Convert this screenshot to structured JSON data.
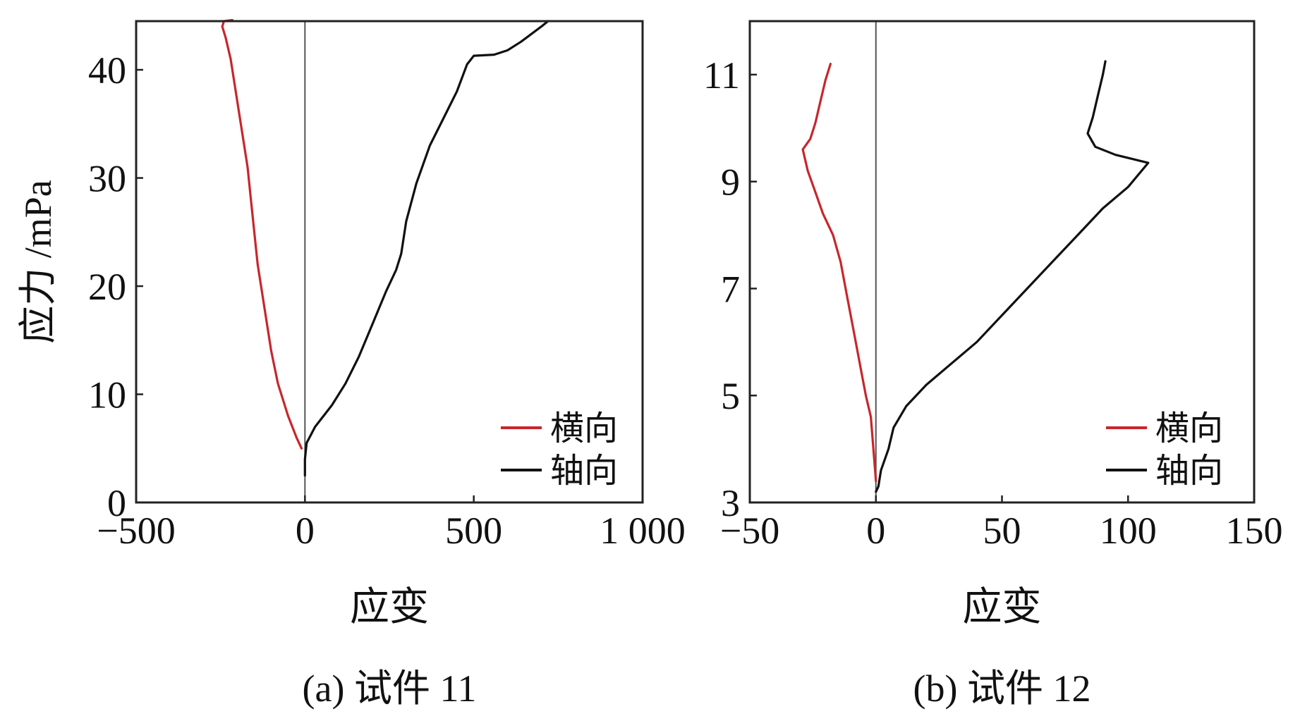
{
  "colors": {
    "transverse": "#c8262b",
    "axial": "#111111",
    "frame": "#222222",
    "zero_line": "#555555"
  },
  "chart_data": [
    {
      "type": "line",
      "caption": "(a) 试件 11",
      "xlabel": "应变",
      "ylabel": "应力 /mPa",
      "xlim": [
        -500,
        1000
      ],
      "ylim": [
        0,
        44.5
      ],
      "x_ticks": [
        -500,
        0,
        500,
        1000
      ],
      "x_tick_labels": [
        "−500",
        "0",
        "500",
        "1 000"
      ],
      "y_ticks": [
        0,
        10,
        20,
        30,
        40
      ],
      "y_tick_labels": [
        "0",
        "10",
        "20",
        "30",
        "40"
      ],
      "vline_x": 0,
      "grid": false,
      "legend_position": "bottom-right",
      "series": [
        {
          "name": "横向",
          "color_key": "transverse",
          "points": [
            [
              -10,
              5
            ],
            [
              -25,
              6
            ],
            [
              -50,
              8
            ],
            [
              -80,
              11
            ],
            [
              -100,
              14
            ],
            [
              -115,
              17
            ],
            [
              -130,
              20
            ],
            [
              -140,
              22
            ],
            [
              -150,
              25
            ],
            [
              -160,
              28
            ],
            [
              -170,
              31
            ],
            [
              -180,
              33
            ],
            [
              -195,
              36
            ],
            [
              -210,
              39
            ],
            [
              -220,
              41
            ],
            [
              -235,
              43
            ],
            [
              -245,
              44
            ],
            [
              -240,
              44.5
            ],
            [
              -215,
              44.6
            ]
          ]
        },
        {
          "name": "轴向",
          "color_key": "axial",
          "points": [
            [
              0,
              2.5
            ],
            [
              0,
              4
            ],
            [
              5,
              5.5
            ],
            [
              30,
              7
            ],
            [
              80,
              9
            ],
            [
              120,
              11
            ],
            [
              160,
              13.5
            ],
            [
              200,
              16.5
            ],
            [
              240,
              19.5
            ],
            [
              270,
              21.5
            ],
            [
              285,
              23
            ],
            [
              300,
              26
            ],
            [
              330,
              29.5
            ],
            [
              370,
              33
            ],
            [
              410,
              35.5
            ],
            [
              450,
              38
            ],
            [
              480,
              40.5
            ],
            [
              500,
              41.3
            ],
            [
              560,
              41.4
            ],
            [
              600,
              41.8
            ],
            [
              640,
              42.6
            ],
            [
              700,
              44
            ],
            [
              720,
              44.5
            ]
          ]
        }
      ]
    },
    {
      "type": "line",
      "caption": "(b) 试件 12",
      "xlabel": "应变",
      "ylabel": "",
      "xlim": [
        -50,
        150
      ],
      "ylim": [
        3,
        12
      ],
      "x_ticks": [
        -50,
        0,
        50,
        100,
        150
      ],
      "x_tick_labels": [
        "−50",
        "0",
        "50",
        "100",
        "150"
      ],
      "y_ticks": [
        3,
        5,
        7,
        9,
        11
      ],
      "y_tick_labels": [
        "3",
        "5",
        "7",
        "9",
        "11"
      ],
      "vline_x": 0,
      "grid": false,
      "legend_position": "bottom-right",
      "series": [
        {
          "name": "横向",
          "color_key": "transverse",
          "points": [
            [
              0,
              3.4
            ],
            [
              -1,
              4
            ],
            [
              -2,
              4.6
            ],
            [
              -4,
              5
            ],
            [
              -6,
              5.5
            ],
            [
              -8,
              6
            ],
            [
              -10,
              6.5
            ],
            [
              -12,
              7
            ],
            [
              -14,
              7.5
            ],
            [
              -17,
              8
            ],
            [
              -21,
              8.4
            ],
            [
              -24,
              8.8
            ],
            [
              -27,
              9.2
            ],
            [
              -29,
              9.6
            ],
            [
              -26,
              9.8
            ],
            [
              -24,
              10.1
            ],
            [
              -22,
              10.5
            ],
            [
              -20,
              10.9
            ],
            [
              -18,
              11.2
            ]
          ]
        },
        {
          "name": "轴向",
          "color_key": "axial",
          "points": [
            [
              0,
              3.2
            ],
            [
              1,
              3.3
            ],
            [
              2,
              3.6
            ],
            [
              5,
              4
            ],
            [
              7,
              4.4
            ],
            [
              12,
              4.8
            ],
            [
              20,
              5.2
            ],
            [
              30,
              5.6
            ],
            [
              40,
              6
            ],
            [
              50,
              6.5
            ],
            [
              60,
              7
            ],
            [
              70,
              7.5
            ],
            [
              80,
              8
            ],
            [
              90,
              8.5
            ],
            [
              100,
              8.9
            ],
            [
              108,
              9.35
            ],
            [
              95,
              9.5
            ],
            [
              87,
              9.65
            ],
            [
              84,
              9.9
            ],
            [
              86,
              10.2
            ],
            [
              88,
              10.6
            ],
            [
              90,
              11
            ],
            [
              91,
              11.25
            ]
          ]
        }
      ]
    }
  ]
}
